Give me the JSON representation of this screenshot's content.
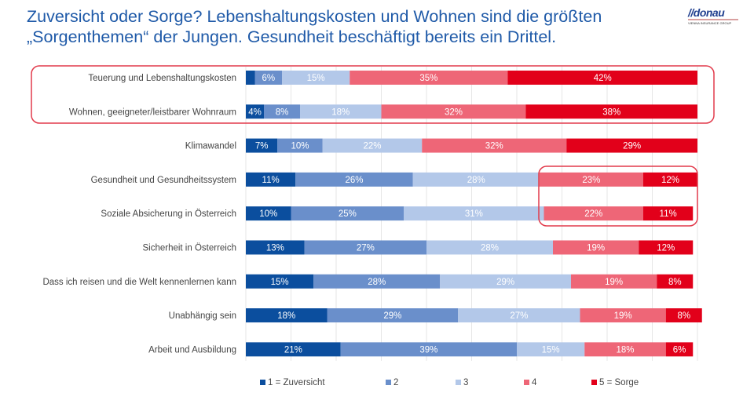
{
  "title_line1": "Zuversicht oder Sorge? Lebenshaltungskosten und Wohnen sind die größten",
  "title_line2": "„Sorgenthemen“ der Jungen. Gesundheit beschäftigt bereits ein Drittel.",
  "logo": {
    "wordmark": "donau",
    "tagline": "VIENNA INSURANCE GROUP"
  },
  "chart_data": {
    "type": "bar",
    "orientation": "horizontal",
    "stacked": "100%",
    "grid": true,
    "legend_position": "bottom",
    "categories": [
      "Teuerung und Lebenshaltungskosten",
      "Wohnen, geeigneter/leistbarer Wohnraum",
      "Klimawandel",
      "Gesundheit und Gesundheitssystem",
      "Soziale Absicherung in Österreich",
      "Sicherheit in Österreich",
      "Dass ich reisen und die Welt kennenlernen kann",
      "Unabhängig sein",
      "Arbeit und Ausbildung"
    ],
    "series": [
      {
        "name": "1 = Zuversicht",
        "color": "#0b4e9e",
        "values": [
          2,
          4,
          7,
          11,
          10,
          13,
          15,
          18,
          21
        ]
      },
      {
        "name": "2",
        "color": "#6a8fcb",
        "values": [
          6,
          8,
          10,
          26,
          25,
          27,
          28,
          29,
          39
        ]
      },
      {
        "name": "3",
        "color": "#b3c8e9",
        "values": [
          15,
          18,
          22,
          28,
          31,
          28,
          29,
          27,
          15
        ]
      },
      {
        "name": "4",
        "color": "#ee6677",
        "values": [
          35,
          32,
          32,
          23,
          22,
          19,
          19,
          19,
          18
        ]
      },
      {
        "name": "5 = Sorge",
        "color": "#e2001a",
        "values": [
          42,
          38,
          29,
          12,
          11,
          12,
          8,
          8,
          6
        ]
      }
    ],
    "hidden_labels": [
      [
        0,
        0
      ]
    ],
    "highlight_color": "#e23a4b"
  }
}
